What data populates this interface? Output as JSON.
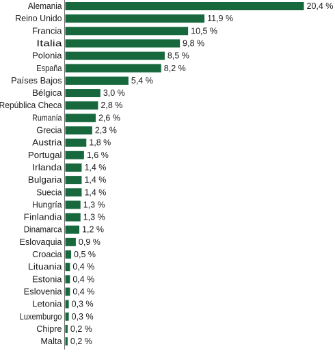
{
  "chart_data": {
    "type": "bar",
    "orientation": "horizontal",
    "bar_color": "#17693d",
    "axis_color": "#6e6e6e",
    "text_color": "#1a1a1a",
    "xlim": [
      0,
      20.4
    ],
    "categories": [
      "Alemania",
      "Reino Unido",
      "Francia",
      "Italia",
      "Polonia",
      "España",
      "Países Bajos",
      "Bélgica",
      "República Checa",
      "Rumanía",
      "Grecia",
      "Austria",
      "Portugal",
      "Irlanda",
      "Bulgaria",
      "Suecia",
      "Hungría",
      "Finlandia",
      "Dinamarca",
      "Eslovaquia",
      "Croacia",
      "Lituania",
      "Estonia",
      "Eslovenia",
      "Letonia",
      "Luxemburgo",
      "Chipre",
      "Malta"
    ],
    "values": [
      20.4,
      11.9,
      10.5,
      9.8,
      8.5,
      8.2,
      5.4,
      3.0,
      2.8,
      2.6,
      2.3,
      1.8,
      1.6,
      1.4,
      1.4,
      1.4,
      1.3,
      1.3,
      1.2,
      0.9,
      0.5,
      0.4,
      0.4,
      0.4,
      0.3,
      0.3,
      0.2,
      0.2
    ],
    "value_labels": [
      "20,4 %",
      "11,9 %",
      "10,5 %",
      "9,8 %",
      "8,5 %",
      "8,2 %",
      "5,4 %",
      "3,0 %",
      "2,8 %",
      "2,6 %",
      "2,3 %",
      "1,8 %",
      "1,6 %",
      "1,4 %",
      "1,4 %",
      "1,4 %",
      "1,3 %",
      "1,3 %",
      "1,2 %",
      "0,9 %",
      "0,5 %",
      "0,4 %",
      "0,4 %",
      "0,4 %",
      "0,3 %",
      "0,3 %",
      "0,2 %",
      "0,2 %"
    ],
    "legend": "none",
    "grid": false
  }
}
